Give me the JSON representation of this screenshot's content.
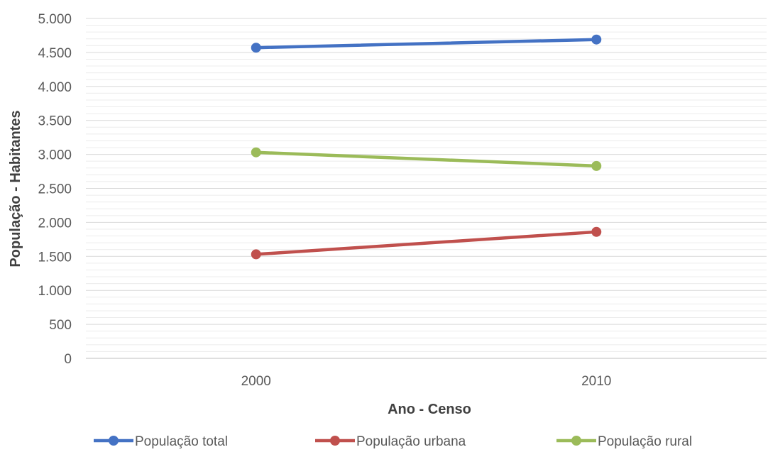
{
  "chart_data": {
    "type": "line",
    "title": "",
    "xlabel": "Ano - Censo",
    "ylabel": "População - Habitantes",
    "categories": [
      "2000",
      "2010"
    ],
    "ylim": [
      0,
      5000
    ],
    "y_ticks": [
      0,
      500,
      1000,
      1500,
      2000,
      2500,
      3000,
      3500,
      4000,
      4500,
      5000
    ],
    "y_tick_labels": [
      "0",
      "500",
      "1.000",
      "1.500",
      "2.000",
      "2.500",
      "3.000",
      "3.500",
      "4.000",
      "4.500",
      "5.000"
    ],
    "minor_grid_step": 100,
    "grid": true,
    "legend_position": "bottom",
    "series": [
      {
        "name": "População total",
        "values": [
          4570,
          4690
        ],
        "color": "#4472C4"
      },
      {
        "name": "População urbana",
        "values": [
          1530,
          1860
        ],
        "color": "#C0504D"
      },
      {
        "name": "População rural",
        "values": [
          3030,
          2830
        ],
        "color": "#9BBB59"
      }
    ]
  }
}
